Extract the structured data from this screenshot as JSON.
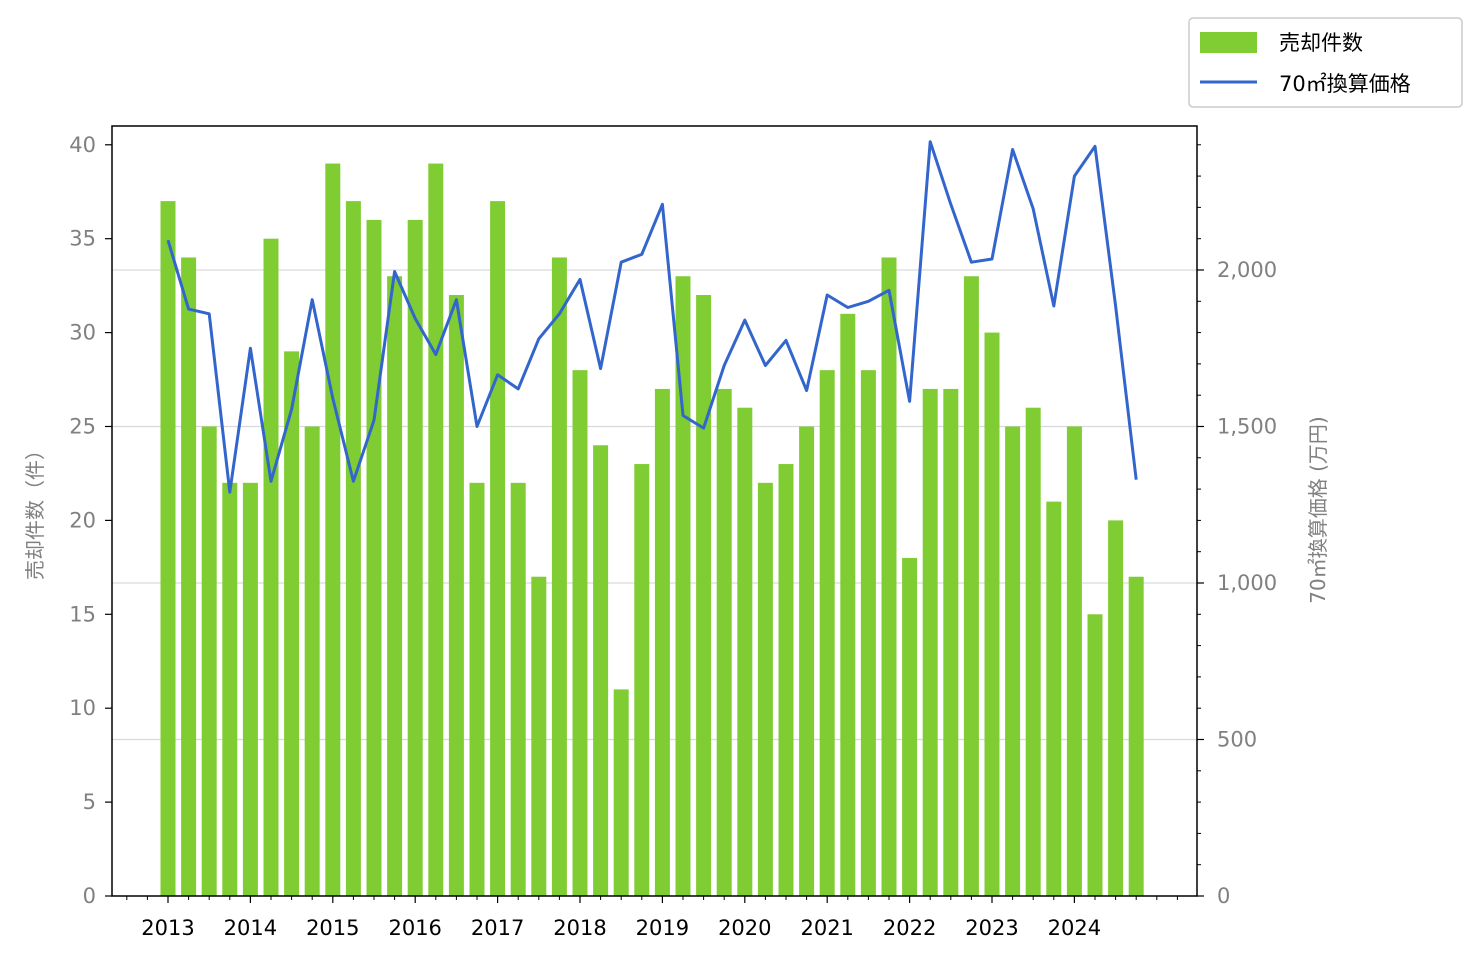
{
  "chart_data": {
    "type": "bar",
    "x_tick_labels": [
      "2013",
      "2014",
      "2015",
      "2016",
      "2017",
      "2018",
      "2019",
      "2020",
      "2021",
      "2022",
      "2023",
      "2024"
    ],
    "ylabel_left": "売却件数（件）",
    "ylabel_right": "70㎡換算価格 (万円)",
    "ylim_left": [
      0,
      41
    ],
    "ylim_right": [
      0,
      2460
    ],
    "yticks_left": [
      0,
      5,
      10,
      15,
      20,
      25,
      30,
      35,
      40
    ],
    "yticks_right": [
      0,
      500,
      1000,
      1500,
      2000
    ],
    "yticks_right_labels": [
      "0",
      "500",
      "1,000",
      "1,500",
      "2,000"
    ],
    "legend_position": "upper-right-outside",
    "grid": "horizontal-right-axis",
    "colors": {
      "bars": "#7fcc33",
      "line": "#3366cc",
      "grid": "#d9d9d9"
    },
    "series": [
      {
        "name": "売却件数",
        "type": "bar",
        "axis": "left",
        "values": [
          37,
          34,
          25,
          22,
          22,
          35,
          29,
          25,
          39,
          37,
          36,
          33,
          36,
          39,
          32,
          22,
          37,
          22,
          17,
          34,
          28,
          24,
          11,
          23,
          27,
          33,
          32,
          27,
          26,
          22,
          23,
          25,
          28,
          31,
          28,
          34,
          18,
          27,
          27,
          33,
          30,
          25,
          26,
          21,
          25,
          15,
          20,
          17
        ]
      },
      {
        "name": "70㎡換算価格",
        "type": "line",
        "axis": "right",
        "values": [
          2095,
          1875,
          1860,
          1290,
          1750,
          1325,
          1555,
          1905,
          1590,
          1325,
          1520,
          1995,
          1845,
          1730,
          1905,
          1500,
          1665,
          1620,
          1780,
          1860,
          1970,
          1685,
          2025,
          2050,
          2210,
          1535,
          1495,
          1695,
          1840,
          1695,
          1775,
          1615,
          1920,
          1880,
          1900,
          1935,
          1580,
          2410,
          2210,
          2025,
          2035,
          2385,
          2195,
          1885,
          2300,
          2395,
          1885,
          1330
        ]
      }
    ]
  }
}
